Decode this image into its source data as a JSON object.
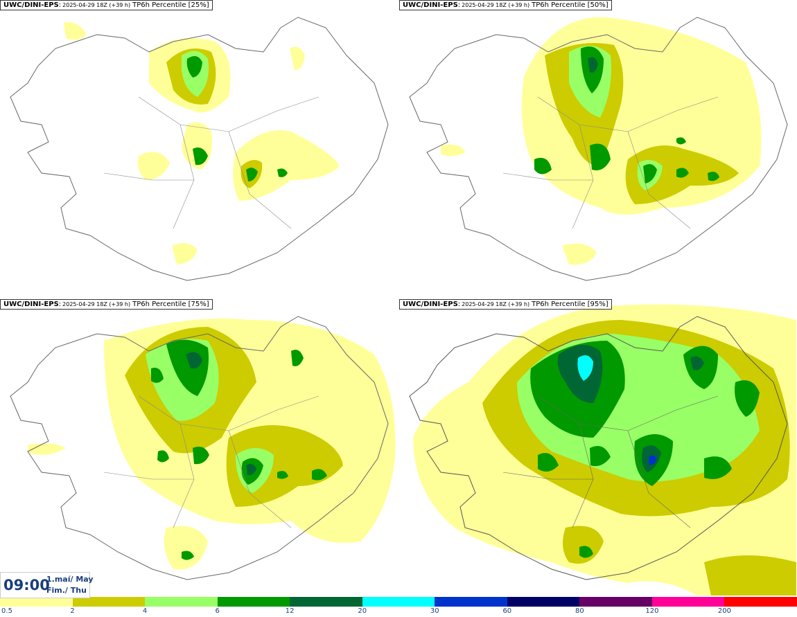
{
  "panels": [
    {
      "model": "UWC/DINI-EPS",
      "run": "2025-04-29 18Z (+39 h)",
      "param": "TP6h Percentile [25%]"
    },
    {
      "model": "UWC/DINI-EPS",
      "run": "2025-04-29 18Z (+39 h)",
      "param": "TP6h Percentile [50%]"
    },
    {
      "model": "UWC/DINI-EPS",
      "run": "2025-04-29 18Z (+39 h)",
      "param": "TP6h Percentile [75%]"
    },
    {
      "model": "UWC/DINI-EPS",
      "run": "2025-04-29 18Z (+39 h)",
      "param": "TP6h Percentile [95%]"
    }
  ],
  "valid_time": {
    "time": "09:00",
    "date_line1": "1.maí/ May",
    "date_line2": "Fim./ Thu"
  },
  "legend": {
    "colors": [
      "#ffff99",
      "#cccc00",
      "#99ff66",
      "#009900",
      "#006633",
      "#00ffff",
      "#0033cc",
      "#000066",
      "#660066",
      "#ff0099",
      "#ff0000"
    ],
    "labels": [
      "0.5",
      "2",
      "4",
      "6",
      "12",
      "20",
      "30",
      "60",
      "80",
      "120",
      "200"
    ]
  }
}
